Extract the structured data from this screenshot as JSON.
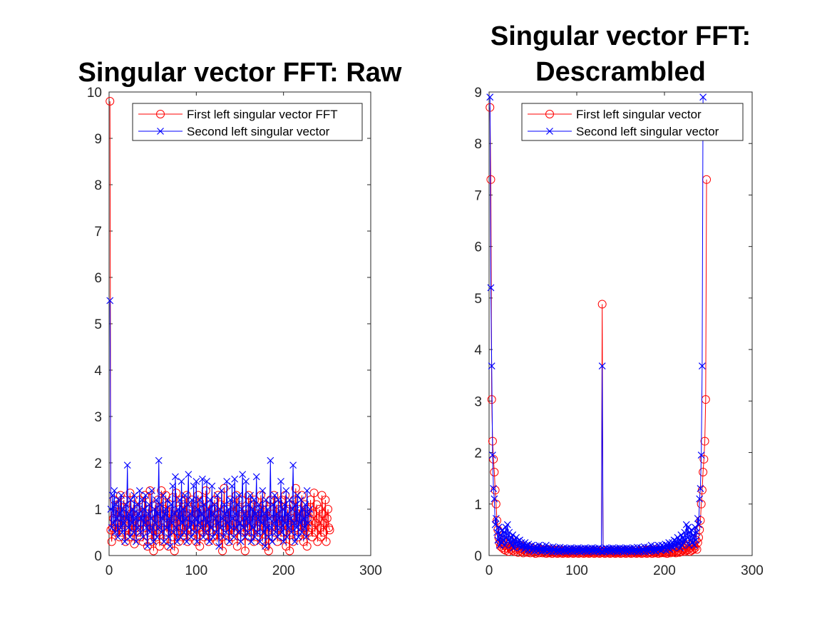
{
  "chart_data": [
    {
      "type": "line",
      "title": [
        "Singular vector FFT: Raw"
      ],
      "xlabel": "",
      "ylabel": "",
      "xlim": [
        0,
        300
      ],
      "ylim": [
        0,
        10
      ],
      "xticks": [
        "0",
        "100",
        "200",
        "300"
      ],
      "yticks": [
        "0",
        "1",
        "2",
        "3",
        "4",
        "5",
        "6",
        "7",
        "8",
        "9",
        "10"
      ],
      "legend_position": "top-right",
      "series": [
        {
          "name": "First left singular vector FFT",
          "color": "#ff0000",
          "marker": "circle",
          "values": [
            9.8,
            0.55,
            0.3,
            0.6,
            0.8,
            1.2,
            0.9,
            0.5,
            0.7,
            1.1,
            0.6,
            0.4,
            1.3,
            0.8,
            0.5,
            0.9,
            1.2,
            0.7,
            0.3,
            1.0,
            0.8,
            0.6,
            0.4,
            1.35,
            0.9,
            0.5,
            0.7,
            1.1,
            0.25,
            0.8,
            0.6,
            1.0,
            0.5,
            0.9,
            1.2,
            0.4,
            0.7,
            1.1,
            0.3,
            0.8,
            1.3,
            0.6,
            0.9,
            0.2,
            1.0,
            0.5,
            1.4,
            0.7,
            0.3,
            0.9,
            0.1,
            0.6,
            1.1,
            0.4,
            0.8,
            1.2,
            0.5,
            0.2,
            0.9,
            1.4,
            0.6,
            0.3,
            1.0,
            0.7,
            1.3,
            0.5,
            0.8,
            0.2,
            1.1,
            0.6,
            0.9,
            0.4,
            1.25,
            0.7,
            0.1,
            0.8,
            1.35,
            0.5,
            0.9,
            0.3,
            1.0,
            0.6,
            1.2,
            0.4,
            0.8,
            1.1,
            0.5,
            0.7,
            1.3,
            0.3,
            0.9,
            0.6,
            1.0,
            0.4,
            1.2,
            0.8,
            0.5,
            1.1,
            0.7,
            0.3,
            0.9,
            1.3,
            0.6,
            0.2,
            1.0,
            0.8,
            0.5,
            1.2,
            0.4,
            0.7,
            1.4,
            0.6,
            0.9,
            0.3,
            1.1,
            0.5,
            0.8,
            1.0,
            0.4,
            0.7,
            1.2,
            0.6,
            0.9,
            0.3,
            1.3,
            0.5,
            0.8,
            1.1,
            0.4,
            0.1,
            0.7,
            1.45,
            0.6,
            0.9,
            0.5,
            1.0,
            0.3,
            0.8,
            1.2,
            0.6,
            0.4,
            0.9,
            1.1,
            0.5,
            0.7,
            1.3,
            0.2,
            0.8,
            1.0,
            0.6,
            0.4,
            1.2,
            0.9,
            0.5,
            0.7,
            0.1,
            1.0,
            0.6,
            0.8,
            1.3,
            0.4,
            0.9,
            0.5,
            1.1,
            0.7,
            0.3,
            1.2,
            0.6,
            0.9,
            0.4,
            1.0,
            0.8,
            0.5,
            1.3,
            0.7,
            0.3,
            1.1,
            0.6,
            0.9,
            0.2,
            1.0,
            0.5,
            0.1,
            0.8,
            1.2,
            0.6,
            0.4,
            0.9,
            1.3,
            0.5,
            0.7,
            1.1,
            0.3,
            0.8,
            1.0,
            0.6,
            0.4,
            1.2,
            0.9,
            0.5,
            0.7,
            1.3,
            0.2,
            0.8,
            1.0,
            0.6,
            0.1,
            1.1,
            0.5,
            0.8,
            0.3,
            1.2,
            0.7,
            1.45,
            0.6,
            0.9,
            0.4,
            1.0,
            0.8,
            0.5,
            1.3,
            0.7,
            0.3,
            1.1,
            0.6,
            0.9,
            0.2,
            1.0,
            0.5,
            0.8,
            1.2,
            0.6,
            0.4,
            0.9,
            1.35,
            0.5,
            0.7,
            1.1,
            0.3,
            0.8,
            1.0,
            0.6,
            0.4,
            1.3,
            0.9,
            0.5,
            0.7,
            1.2,
            0.3,
            0.8,
            1.0,
            0.6,
            0.55
          ]
        },
        {
          "name": "Second left singular vector",
          "color": "#0000ff",
          "marker": "x",
          "values": [
            5.5,
            1.0,
            0.6,
            1.3,
            0.7,
            1.4,
            0.5,
            1.1,
            0.8,
            0.4,
            1.2,
            0.9,
            0.6,
            1.3,
            0.5,
            1.0,
            0.7,
            0.3,
            1.1,
            0.8,
            1.95,
            0.6,
            0.9,
            0.4,
            1.2,
            0.7,
            1.0,
            0.5,
            1.3,
            0.8,
            0.3,
            1.1,
            0.6,
            0.9,
            1.4,
            0.5,
            0.8,
            1.2,
            0.4,
            1.0,
            0.7,
            1.3,
            0.6,
            0.2,
            0.9,
            1.1,
            0.5,
            0.8,
            1.4,
            0.6,
            0.3,
            1.0,
            0.7,
            1.2,
            0.4,
            0.9,
            2.05,
            0.6,
            1.1,
            0.5,
            0.8,
            1.3,
            0.3,
            0.9,
            1.0,
            0.6,
            1.2,
            0.4,
            0.8,
            0.2,
            1.1,
            0.7,
            1.5,
            0.5,
            0.9,
            1.7,
            0.6,
            0.3,
            1.0,
            0.8,
            1.2,
            0.4,
            1.6,
            0.7,
            1.0,
            0.5,
            1.3,
            0.8,
            0.3,
            1.1,
            1.75,
            0.6,
            0.9,
            0.4,
            1.2,
            0.7,
            1.5,
            0.5,
            0.8,
            1.6,
            0.3,
            1.0,
            0.7,
            1.2,
            0.6,
            0.9,
            1.65,
            0.4,
            1.1,
            0.8,
            0.5,
            1.6,
            0.7,
            1.0,
            0.3,
            1.2,
            0.6,
            1.5,
            0.4,
            0.9,
            1.1,
            0.8,
            0.5,
            1.3,
            0.7,
            0.2,
            1.0,
            0.6,
            1.4,
            0.8,
            0.4,
            1.1,
            0.9,
            0.5,
            1.6,
            0.7,
            1.0,
            0.3,
            1.2,
            0.6,
            1.5,
            0.8,
            0.4,
            1.65,
            0.9,
            0.6,
            1.1,
            0.5,
            1.3,
            0.7,
            0.3,
            1.0,
            1.75,
            0.6,
            0.9,
            0.4,
            1.6,
            0.8,
            0.5,
            1.1,
            0.7,
            1.3,
            0.3,
            1.0,
            0.6,
            1.2,
            0.4,
            0.9,
            1.7,
            0.5,
            0.8,
            1.1,
            0.3,
            1.0,
            0.7,
            1.4,
            0.5,
            0.9,
            0.2,
            1.2,
            0.6,
            1.0,
            0.4,
            0.8,
            2.05,
            0.6,
            0.3,
            1.1,
            0.7,
            1.3,
            0.5,
            0.9,
            0.4,
            1.2,
            0.8,
            0.6,
            1.6,
            0.5,
            1.0,
            0.3,
            1.1,
            0.7,
            1.4,
            0.4,
            0.9,
            0.6,
            1.2,
            0.8,
            0.5,
            1.0,
            1.95,
            0.7,
            0.3,
            1.1,
            0.6,
            1.3,
            0.4,
            0.9,
            0.7,
            1.2,
            0.5,
            1.0,
            0.8,
            0.6,
            1.1,
            0.4,
            1.4,
            0.7,
            0.9,
            1.0
          ]
        }
      ]
    },
    {
      "type": "line",
      "title": [
        "Singular vector FFT:",
        "Descrambled"
      ],
      "xlabel": "",
      "ylabel": "",
      "xlim": [
        0,
        300
      ],
      "ylim": [
        0,
        9
      ],
      "xticks": [
        "0",
        "100",
        "200",
        "300"
      ],
      "yticks": [
        "0",
        "1",
        "2",
        "3",
        "4",
        "5",
        "6",
        "7",
        "8",
        "9"
      ],
      "legend_position": "top-right",
      "series": [
        {
          "name": "First left singular vector",
          "color": "#ff0000",
          "marker": "circle",
          "values": [
            8.7,
            7.3,
            3.03,
            2.22,
            1.87,
            1.62,
            1.27,
            1.0,
            0.68,
            0.5,
            0.35,
            0.25,
            0.18,
            0.22,
            0.15,
            0.3,
            0.12,
            0.2,
            0.1,
            0.25,
            0.14,
            0.08,
            0.18,
            0.3,
            0.12,
            0.2,
            0.1,
            0.15,
            0.08,
            0.22,
            0.12,
            0.18,
            0.06,
            0.14,
            0.1,
            0.2,
            0.08,
            0.12,
            0.05,
            0.16,
            0.1,
            0.08,
            0.14,
            0.06,
            0.12,
            0.1,
            0.05,
            0.15,
            0.08,
            0.1,
            0.06,
            0.12,
            0.04,
            0.1,
            0.08,
            0.14,
            0.05,
            0.1,
            0.07,
            0.12,
            0.05,
            0.09,
            0.06,
            0.11,
            0.04,
            0.1,
            0.07,
            0.05,
            0.12,
            0.06,
            0.09,
            0.04,
            0.1,
            0.06,
            0.08,
            0.05,
            0.11,
            0.04,
            0.09,
            0.06,
            0.1,
            0.05,
            0.08,
            0.04,
            0.1,
            0.06,
            0.09,
            0.05,
            0.07,
            0.04,
            0.1,
            0.06,
            0.08,
            0.05,
            0.09,
            0.04,
            0.07,
            0.06,
            0.1,
            0.05,
            0.08,
            0.04,
            0.09,
            0.06,
            0.07,
            0.05,
            0.1,
            0.04,
            0.08,
            0.06,
            0.09,
            0.05,
            0.07,
            0.04,
            0.1,
            0.06,
            0.08,
            0.05,
            0.09,
            0.04,
            0.07,
            0.06,
            0.1,
            0.05,
            0.08,
            0.04,
            0.09,
            0.06,
            4.88,
            0.06,
            0.09,
            0.04,
            0.08,
            0.05,
            0.1,
            0.06,
            0.07,
            0.04,
            0.09,
            0.05,
            0.08,
            0.06,
            0.1,
            0.04,
            0.07,
            0.05,
            0.09,
            0.06,
            0.08,
            0.04,
            0.1,
            0.05,
            0.07,
            0.06,
            0.09,
            0.04,
            0.08,
            0.05,
            0.1,
            0.06,
            0.07,
            0.04,
            0.09,
            0.05,
            0.08,
            0.06,
            0.1,
            0.04,
            0.07,
            0.05,
            0.09,
            0.06,
            0.08,
            0.04,
            0.1,
            0.05,
            0.07,
            0.06,
            0.09,
            0.04,
            0.11,
            0.05,
            0.08,
            0.06,
            0.1,
            0.04,
            0.09,
            0.07,
            0.05,
            0.12,
            0.06,
            0.09,
            0.04,
            0.1,
            0.07,
            0.05,
            0.11,
            0.06,
            0.09,
            0.05,
            0.12,
            0.07,
            0.04,
            0.1,
            0.06,
            0.14,
            0.05,
            0.09,
            0.07,
            0.12,
            0.06,
            0.1,
            0.05,
            0.15,
            0.08,
            0.1,
            0.06,
            0.16,
            0.08,
            0.12,
            0.1,
            0.2,
            0.08,
            0.14,
            0.1,
            0.18,
            0.12,
            0.22,
            0.08,
            0.15,
            0.1,
            0.2,
            0.12,
            0.18,
            0.15,
            0.3,
            0.12,
            0.25,
            0.35,
            0.5,
            0.68,
            1.0,
            1.27,
            1.62,
            1.87,
            2.22,
            3.03,
            7.3
          ]
        },
        {
          "name": "Second left singular vector",
          "color": "#0000ff",
          "marker": "x",
          "values": [
            8.9,
            5.2,
            3.68,
            1.95,
            1.3,
            1.1,
            0.6,
            0.72,
            0.45,
            0.3,
            0.55,
            0.2,
            0.4,
            0.25,
            0.5,
            0.3,
            0.45,
            0.2,
            0.55,
            0.35,
            0.6,
            0.3,
            0.45,
            0.25,
            0.35,
            0.2,
            0.4,
            0.15,
            0.3,
            0.22,
            0.35,
            0.18,
            0.28,
            0.2,
            0.3,
            0.15,
            0.25,
            0.18,
            0.22,
            0.12,
            0.25,
            0.15,
            0.2,
            0.1,
            0.22,
            0.14,
            0.18,
            0.1,
            0.2,
            0.12,
            0.16,
            0.08,
            0.18,
            0.12,
            0.15,
            0.1,
            0.2,
            0.12,
            0.14,
            0.08,
            0.18,
            0.1,
            0.15,
            0.09,
            0.2,
            0.11,
            0.13,
            0.08,
            0.16,
            0.1,
            0.14,
            0.07,
            0.17,
            0.1,
            0.13,
            0.08,
            0.15,
            0.09,
            0.12,
            0.07,
            0.16,
            0.1,
            0.13,
            0.08,
            0.15,
            0.09,
            0.12,
            0.07,
            0.14,
            0.1,
            0.13,
            0.08,
            0.15,
            0.09,
            0.12,
            0.07,
            0.14,
            0.1,
            0.13,
            0.08,
            0.15,
            0.09,
            0.12,
            0.07,
            0.14,
            0.1,
            0.13,
            0.08,
            0.15,
            0.09,
            0.12,
            0.07,
            0.14,
            0.1,
            0.13,
            0.08,
            0.15,
            0.09,
            0.12,
            0.07,
            0.14,
            0.1,
            0.13,
            0.08,
            0.15,
            0.09,
            0.12,
            0.07,
            3.68,
            0.07,
            0.12,
            0.09,
            0.15,
            0.08,
            0.13,
            0.1,
            0.14,
            0.07,
            0.12,
            0.09,
            0.15,
            0.08,
            0.13,
            0.1,
            0.14,
            0.07,
            0.12,
            0.09,
            0.15,
            0.08,
            0.13,
            0.1,
            0.14,
            0.07,
            0.12,
            0.09,
            0.15,
            0.08,
            0.13,
            0.1,
            0.14,
            0.07,
            0.12,
            0.09,
            0.15,
            0.08,
            0.13,
            0.1,
            0.16,
            0.07,
            0.12,
            0.09,
            0.15,
            0.08,
            0.13,
            0.1,
            0.17,
            0.07,
            0.14,
            0.1,
            0.16,
            0.08,
            0.13,
            0.11,
            0.2,
            0.09,
            0.15,
            0.1,
            0.18,
            0.08,
            0.14,
            0.12,
            0.2,
            0.12,
            0.16,
            0.1,
            0.2,
            0.12,
            0.18,
            0.14,
            0.22,
            0.1,
            0.2,
            0.15,
            0.25,
            0.12,
            0.22,
            0.18,
            0.25,
            0.15,
            0.3,
            0.2,
            0.28,
            0.18,
            0.35,
            0.22,
            0.3,
            0.15,
            0.4,
            0.2,
            0.35,
            0.25,
            0.45,
            0.3,
            0.6,
            0.35,
            0.55,
            0.2,
            0.45,
            0.3,
            0.5,
            0.25,
            0.4,
            0.2,
            0.55,
            0.3,
            0.45,
            0.72,
            0.6,
            1.1,
            1.3,
            1.95,
            3.68,
            8.9
          ]
        }
      ]
    }
  ]
}
